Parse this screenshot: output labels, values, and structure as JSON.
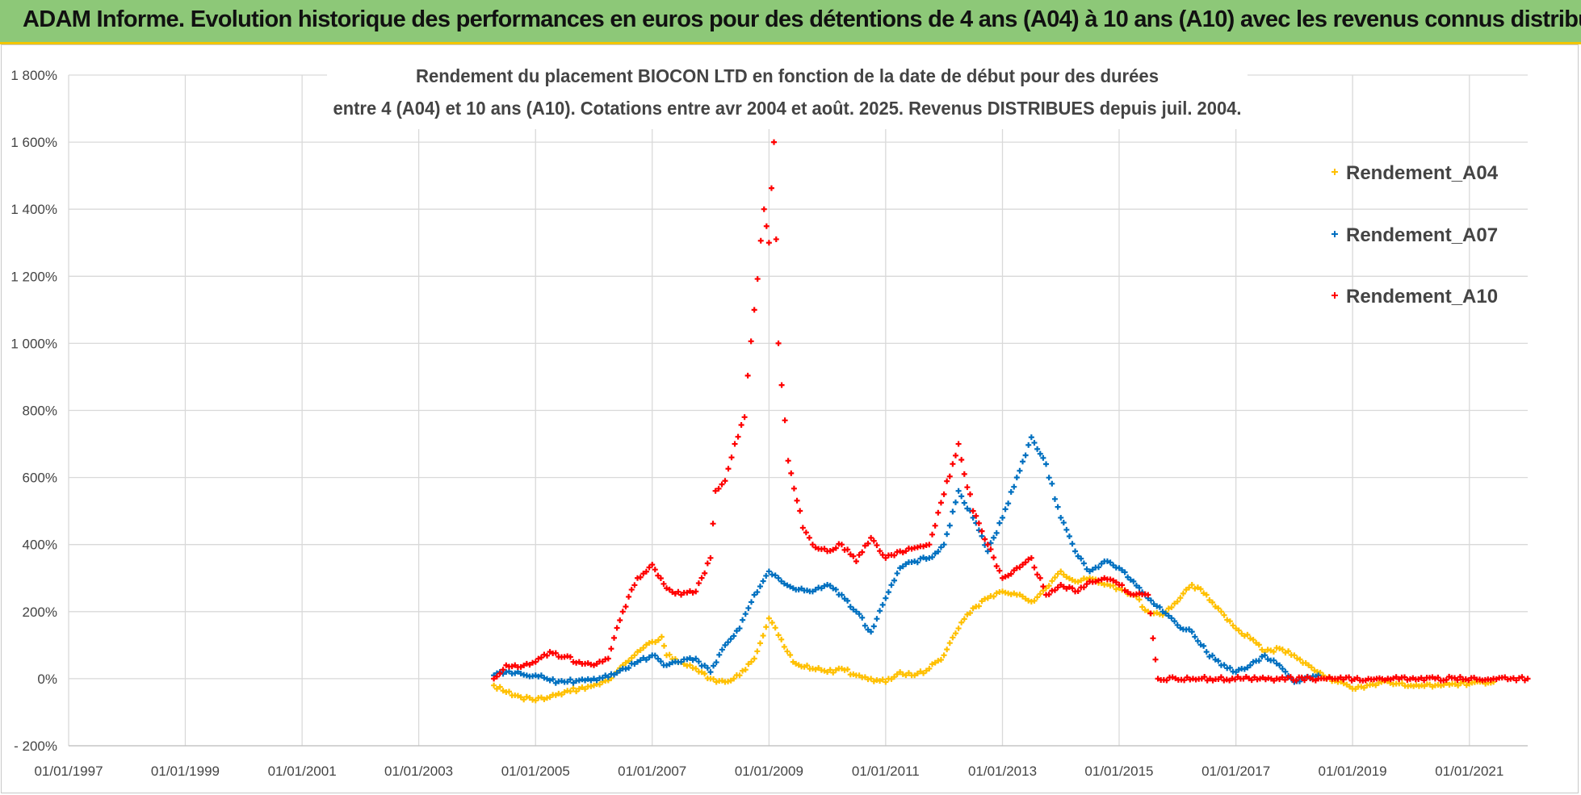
{
  "header": {
    "title": "ADAM Informe. Evolution historique des performances en euros pour des détentions de 4 ans (A04) à 10 ans (A10) avec les revenus connus distribués"
  },
  "chart_data": {
    "type": "scatter",
    "title_lines": [
      "Rendement du placement BIOCON LTD en fonction de la date de début pour des durées",
      "entre 4 (A04) et 10 ans (A10).  Cotations entre avr 2004 et août. 2025. Revenus DISTRIBUES depuis juil. 2004."
    ],
    "xlabel": "",
    "ylabel": "",
    "x_ticks": [
      "01/01/1997",
      "01/01/1999",
      "01/01/2001",
      "01/01/2003",
      "01/01/2005",
      "01/01/2007",
      "01/01/2009",
      "01/01/2011",
      "01/01/2013",
      "01/01/2015",
      "01/01/2017",
      "01/01/2019",
      "01/01/2021"
    ],
    "xlim": [
      "1997-01-01",
      "2022-01-01"
    ],
    "y_ticks": [
      "- 200%",
      "0%",
      "200%",
      "400%",
      "600%",
      "800%",
      "1 000%",
      "1 200%",
      "1 400%",
      "1 600%",
      "1 800%"
    ],
    "ylim": [
      -200,
      1800
    ],
    "grid": true,
    "legend_position": "top-right",
    "series": [
      {
        "name": "Rendement_A04",
        "color": "#ffc000",
        "points": [
          [
            "2004-04-15",
            -20
          ],
          [
            "2004-07-01",
            -40
          ],
          [
            "2004-10-01",
            -55
          ],
          [
            "2005-01-01",
            -65
          ],
          [
            "2005-04-01",
            -55
          ],
          [
            "2005-07-01",
            -40
          ],
          [
            "2005-10-01",
            -30
          ],
          [
            "2006-01-01",
            -20
          ],
          [
            "2006-04-01",
            -5
          ],
          [
            "2006-07-01",
            40
          ],
          [
            "2006-10-01",
            80
          ],
          [
            "2007-01-01",
            110
          ],
          [
            "2007-03-01",
            125
          ],
          [
            "2007-04-01",
            70
          ],
          [
            "2007-07-01",
            50
          ],
          [
            "2007-10-01",
            30
          ],
          [
            "2008-01-01",
            0
          ],
          [
            "2008-04-01",
            -10
          ],
          [
            "2008-07-01",
            10
          ],
          [
            "2008-10-01",
            60
          ],
          [
            "2009-01-01",
            180
          ],
          [
            "2009-03-01",
            130
          ],
          [
            "2009-06-01",
            50
          ],
          [
            "2009-10-01",
            30
          ],
          [
            "2010-01-01",
            20
          ],
          [
            "2010-04-01",
            30
          ],
          [
            "2010-07-01",
            10
          ],
          [
            "2010-10-01",
            0
          ],
          [
            "2011-01-01",
            -10
          ],
          [
            "2011-04-01",
            20
          ],
          [
            "2011-07-01",
            10
          ],
          [
            "2011-10-01",
            30
          ],
          [
            "2012-01-01",
            70
          ],
          [
            "2012-04-01",
            150
          ],
          [
            "2012-07-01",
            210
          ],
          [
            "2012-10-01",
            240
          ],
          [
            "2013-01-01",
            260
          ],
          [
            "2013-04-01",
            250
          ],
          [
            "2013-07-01",
            230
          ],
          [
            "2013-10-01",
            270
          ],
          [
            "2014-01-01",
            320
          ],
          [
            "2014-04-01",
            290
          ],
          [
            "2014-07-01",
            300
          ],
          [
            "2014-10-01",
            280
          ],
          [
            "2015-01-01",
            270
          ],
          [
            "2015-04-01",
            250
          ],
          [
            "2015-07-01",
            200
          ],
          [
            "2015-10-01",
            190
          ],
          [
            "2016-01-01",
            230
          ],
          [
            "2016-04-01",
            280
          ],
          [
            "2016-07-01",
            250
          ],
          [
            "2016-10-01",
            200
          ],
          [
            "2017-01-01",
            150
          ],
          [
            "2017-04-01",
            120
          ],
          [
            "2017-07-01",
            80
          ],
          [
            "2017-10-01",
            90
          ],
          [
            "2018-01-01",
            70
          ],
          [
            "2018-04-01",
            40
          ],
          [
            "2018-07-01",
            10
          ],
          [
            "2018-10-01",
            -10
          ],
          [
            "2019-01-01",
            -30
          ],
          [
            "2019-04-01",
            -20
          ],
          [
            "2019-07-01",
            -10
          ],
          [
            "2019-10-01",
            -15
          ],
          [
            "2020-01-01",
            -20
          ],
          [
            "2020-06-01",
            -20
          ],
          [
            "2021-01-01",
            -15
          ],
          [
            "2021-06-01",
            -10
          ]
        ]
      },
      {
        "name": "Rendement_A07",
        "color": "#0070c0",
        "points": [
          [
            "2004-04-15",
            10
          ],
          [
            "2004-07-01",
            20
          ],
          [
            "2004-10-01",
            15
          ],
          [
            "2005-01-01",
            10
          ],
          [
            "2005-04-01",
            -5
          ],
          [
            "2005-07-01",
            -10
          ],
          [
            "2005-10-01",
            -5
          ],
          [
            "2006-01-01",
            0
          ],
          [
            "2006-04-01",
            5
          ],
          [
            "2006-07-01",
            30
          ],
          [
            "2006-10-01",
            50
          ],
          [
            "2007-01-01",
            70
          ],
          [
            "2007-04-01",
            40
          ],
          [
            "2007-07-01",
            50
          ],
          [
            "2007-10-01",
            60
          ],
          [
            "2008-01-01",
            20
          ],
          [
            "2008-04-01",
            100
          ],
          [
            "2008-07-01",
            150
          ],
          [
            "2008-10-01",
            250
          ],
          [
            "2009-01-01",
            320
          ],
          [
            "2009-03-01",
            300
          ],
          [
            "2009-06-01",
            270
          ],
          [
            "2009-10-01",
            260
          ],
          [
            "2010-01-01",
            280
          ],
          [
            "2010-04-01",
            250
          ],
          [
            "2010-07-01",
            200
          ],
          [
            "2010-10-01",
            140
          ],
          [
            "2011-01-01",
            240
          ],
          [
            "2011-04-01",
            330
          ],
          [
            "2011-07-01",
            350
          ],
          [
            "2011-10-01",
            360
          ],
          [
            "2012-01-01",
            400
          ],
          [
            "2012-04-01",
            560
          ],
          [
            "2012-07-01",
            480
          ],
          [
            "2012-10-01",
            380
          ],
          [
            "2013-01-01",
            480
          ],
          [
            "2013-04-01",
            600
          ],
          [
            "2013-07-01",
            720
          ],
          [
            "2013-10-01",
            640
          ],
          [
            "2014-01-01",
            480
          ],
          [
            "2014-04-01",
            380
          ],
          [
            "2014-07-01",
            320
          ],
          [
            "2014-10-01",
            350
          ],
          [
            "2015-01-01",
            330
          ],
          [
            "2015-04-01",
            290
          ],
          [
            "2015-07-01",
            240
          ],
          [
            "2015-10-01",
            200
          ],
          [
            "2016-01-01",
            160
          ],
          [
            "2016-04-01",
            140
          ],
          [
            "2016-07-01",
            80
          ],
          [
            "2016-10-01",
            40
          ],
          [
            "2017-01-01",
            20
          ],
          [
            "2017-04-01",
            40
          ],
          [
            "2017-07-01",
            70
          ],
          [
            "2017-10-01",
            40
          ],
          [
            "2018-01-01",
            -10
          ],
          [
            "2018-06-01",
            10
          ]
        ]
      },
      {
        "name": "Rendement_A10",
        "color": "#ff0000",
        "points": [
          [
            "2004-04-15",
            0
          ],
          [
            "2004-07-01",
            40
          ],
          [
            "2004-10-01",
            35
          ],
          [
            "2005-01-01",
            50
          ],
          [
            "2005-04-01",
            80
          ],
          [
            "2005-07-01",
            65
          ],
          [
            "2005-10-01",
            50
          ],
          [
            "2006-01-01",
            40
          ],
          [
            "2006-04-01",
            60
          ],
          [
            "2006-07-01",
            200
          ],
          [
            "2006-10-01",
            300
          ],
          [
            "2007-01-01",
            340
          ],
          [
            "2007-04-01",
            270
          ],
          [
            "2007-07-01",
            250
          ],
          [
            "2007-10-01",
            260
          ],
          [
            "2008-01-01",
            360
          ],
          [
            "2008-02-01",
            560
          ],
          [
            "2008-04-01",
            590
          ],
          [
            "2008-06-01",
            700
          ],
          [
            "2008-08-01",
            780
          ],
          [
            "2008-10-01",
            1100
          ],
          [
            "2008-12-01",
            1400
          ],
          [
            "2009-01-01",
            1300
          ],
          [
            "2009-02-01",
            1600
          ],
          [
            "2009-03-01",
            1000
          ],
          [
            "2009-05-01",
            650
          ],
          [
            "2009-08-01",
            450
          ],
          [
            "2009-10-01",
            400
          ],
          [
            "2010-01-01",
            380
          ],
          [
            "2010-04-01",
            400
          ],
          [
            "2010-07-01",
            350
          ],
          [
            "2010-10-01",
            420
          ],
          [
            "2011-01-01",
            360
          ],
          [
            "2011-04-01",
            380
          ],
          [
            "2011-07-01",
            390
          ],
          [
            "2011-10-01",
            400
          ],
          [
            "2012-01-01",
            550
          ],
          [
            "2012-04-01",
            700
          ],
          [
            "2012-07-01",
            500
          ],
          [
            "2012-10-01",
            400
          ],
          [
            "2013-01-01",
            300
          ],
          [
            "2013-04-01",
            330
          ],
          [
            "2013-07-01",
            360
          ],
          [
            "2013-10-01",
            250
          ],
          [
            "2014-01-01",
            280
          ],
          [
            "2014-04-01",
            260
          ],
          [
            "2014-07-01",
            290
          ],
          [
            "2014-10-01",
            300
          ],
          [
            "2015-01-01",
            280
          ],
          [
            "2015-04-01",
            250
          ],
          [
            "2015-07-01",
            250
          ],
          [
            "2015-09-01",
            0
          ],
          [
            "2016-06-01",
            0
          ],
          [
            "2017-06-01",
            0
          ],
          [
            "2018-06-01",
            0
          ],
          [
            "2019-06-01",
            0
          ],
          [
            "2020-06-01",
            0
          ],
          [
            "2021-06-01",
            0
          ],
          [
            "2022-01-01",
            0
          ]
        ]
      }
    ]
  }
}
